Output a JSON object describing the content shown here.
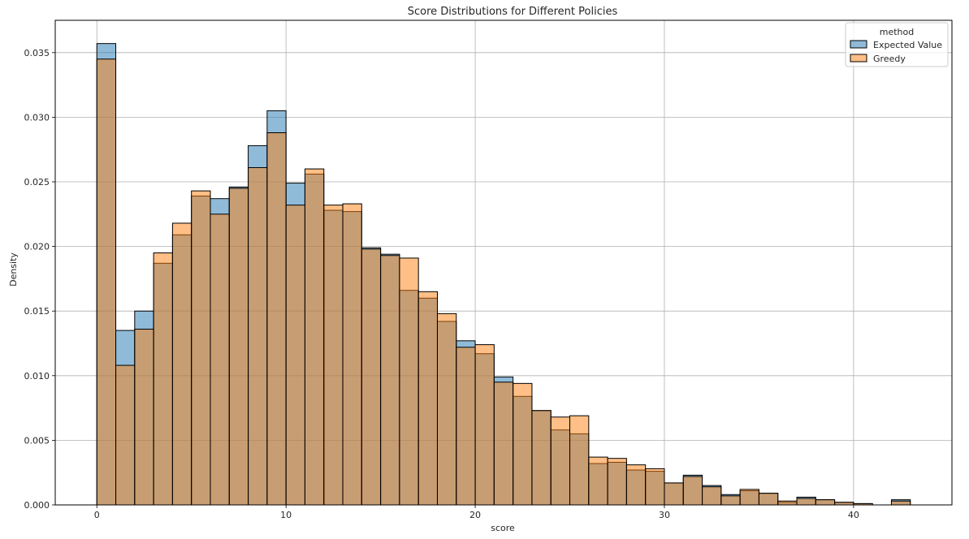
{
  "chart_data": {
    "type": "bar",
    "subtype": "histogram",
    "title": "Score Distributions for Different Policies",
    "xlabel": "score",
    "ylabel": "Density",
    "xlim": [
      -2.2,
      45.2
    ],
    "ylim": [
      0,
      0.0375
    ],
    "xticks": [
      0,
      10,
      20,
      30,
      40
    ],
    "yticks": [
      0.0,
      0.005,
      0.01,
      0.015,
      0.02,
      0.025,
      0.03,
      0.035
    ],
    "ytick_labels": [
      "0.000",
      "0.005",
      "0.010",
      "0.015",
      "0.020",
      "0.025",
      "0.030",
      "0.035"
    ],
    "grid": true,
    "legend": {
      "title": "method",
      "position": "top-right"
    },
    "bin_edges": [
      0,
      1,
      2,
      3,
      4,
      5,
      6,
      7,
      8,
      9,
      10,
      11,
      12,
      13,
      14,
      15,
      16,
      17,
      18,
      19,
      20,
      21,
      22,
      23,
      24,
      25,
      26,
      27,
      28,
      29,
      30,
      31,
      32,
      33,
      34,
      35,
      36,
      37,
      38,
      39,
      40,
      41,
      42,
      43
    ],
    "series": [
      {
        "name": "Expected Value",
        "color": "#1f77b4",
        "values": [
          0.0357,
          0.0135,
          0.015,
          0.0187,
          0.0209,
          0.0239,
          0.0237,
          0.0246,
          0.0278,
          0.0305,
          0.0249,
          0.0256,
          0.0228,
          0.0227,
          0.0199,
          0.0194,
          0.0166,
          0.016,
          0.0142,
          0.0127,
          0.0117,
          0.0099,
          0.0084,
          0.0073,
          0.0058,
          0.0055,
          0.0032,
          0.0033,
          0.0027,
          0.0026,
          0.0017,
          0.0023,
          0.0015,
          0.0008,
          0.0011,
          0.0009,
          0.0002,
          0.0006,
          0.0004,
          0.0002,
          0.0001,
          0.0,
          0.0004
        ]
      },
      {
        "name": "Greedy",
        "color": "#ff7f0e",
        "values": [
          0.0345,
          0.0108,
          0.0136,
          0.0195,
          0.0218,
          0.0243,
          0.0225,
          0.0245,
          0.0261,
          0.0288,
          0.0232,
          0.026,
          0.0232,
          0.0233,
          0.0198,
          0.0193,
          0.0191,
          0.0165,
          0.0148,
          0.0122,
          0.0124,
          0.0095,
          0.0094,
          0.0073,
          0.0068,
          0.0069,
          0.0037,
          0.0036,
          0.0031,
          0.0028,
          0.0017,
          0.0022,
          0.0014,
          0.0007,
          0.0012,
          0.0009,
          0.0003,
          0.0005,
          0.0004,
          0.0002,
          0.0001,
          0.0,
          0.0003
        ]
      }
    ]
  }
}
